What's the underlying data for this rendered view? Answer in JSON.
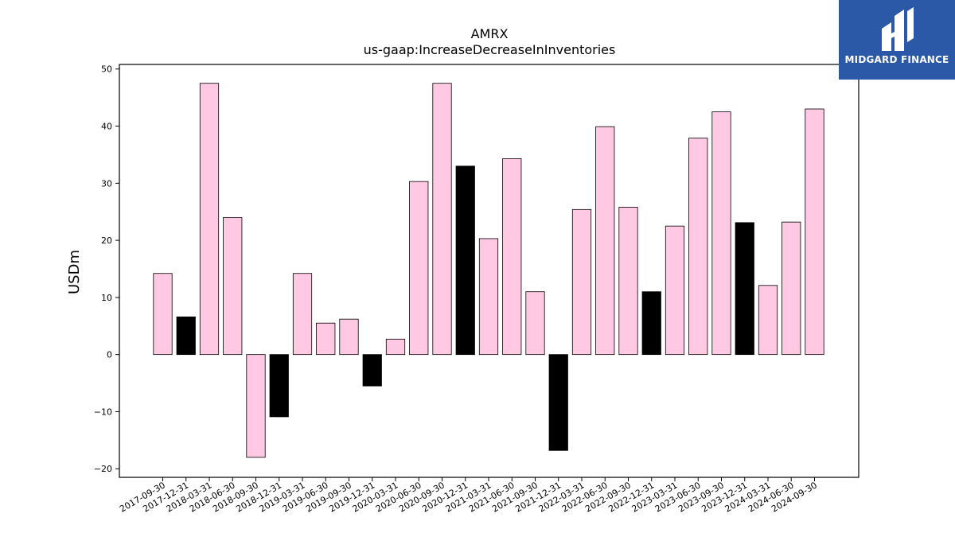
{
  "logo": {
    "text": "MIDGARD FINANCE"
  },
  "chart_data": {
    "type": "bar",
    "title": "AMRX",
    "subtitle": "us-gaap:IncreaseDecreaseInInventories",
    "xlabel": "",
    "ylabel": "USDm",
    "ylim": [
      -21.5,
      50.8
    ],
    "yticks": [
      -20,
      -10,
      0,
      10,
      20,
      30,
      40,
      50
    ],
    "grid": false,
    "colors": {
      "default": "#ffc9e3",
      "q4": "#000000",
      "edge": "#000000"
    },
    "categories": [
      "2017-09-30",
      "2017-12-31",
      "2018-03-31",
      "2018-06-30",
      "2018-09-30",
      "2018-12-31",
      "2019-03-31",
      "2019-06-30",
      "2019-09-30",
      "2019-12-31",
      "2020-03-31",
      "2020-06-30",
      "2020-09-30",
      "2020-12-31",
      "2021-03-31",
      "2021-06-30",
      "2021-09-30",
      "2021-12-31",
      "2022-03-31",
      "2022-06-30",
      "2022-09-30",
      "2022-12-31",
      "2023-03-31",
      "2023-06-30",
      "2023-09-30",
      "2023-12-31",
      "2024-03-31",
      "2024-06-30",
      "2024-09-30"
    ],
    "values": [
      14.2,
      6.6,
      47.5,
      24.0,
      -18.0,
      -10.9,
      14.2,
      5.5,
      6.2,
      -5.5,
      2.7,
      30.3,
      47.5,
      33.0,
      20.3,
      34.3,
      11.0,
      -16.8,
      25.4,
      39.9,
      25.8,
      11.0,
      22.5,
      37.9,
      42.5,
      23.1,
      12.1,
      23.2,
      43.0
    ],
    "highlight": [
      false,
      true,
      false,
      false,
      false,
      true,
      false,
      false,
      false,
      true,
      false,
      false,
      false,
      true,
      false,
      false,
      false,
      true,
      false,
      false,
      false,
      true,
      false,
      false,
      false,
      true,
      false,
      false,
      false
    ]
  }
}
